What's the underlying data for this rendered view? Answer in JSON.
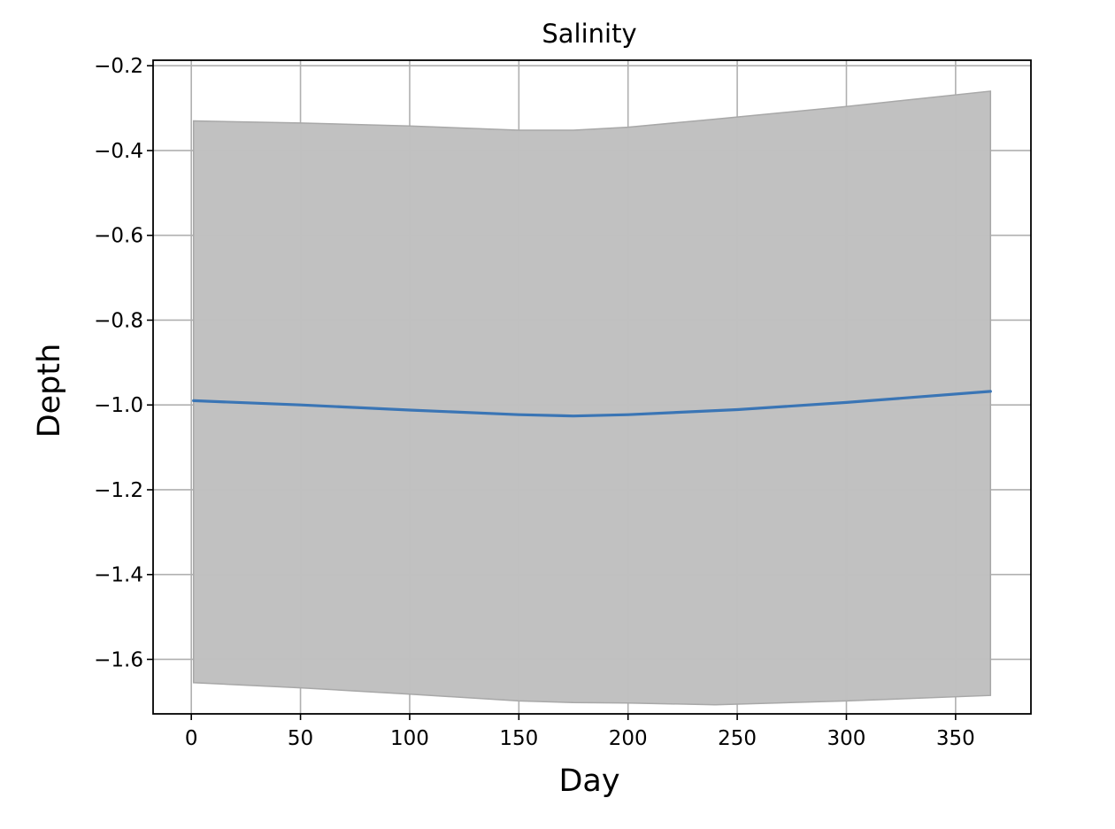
{
  "chart_data": {
    "type": "area",
    "title": "Salinity",
    "xlabel": "Day",
    "ylabel": "Depth",
    "xlim": [
      -17.5,
      384.5
    ],
    "ylim": [
      -1.7285,
      -0.187
    ],
    "x_ticks": [
      0,
      50,
      100,
      150,
      200,
      250,
      300,
      350
    ],
    "x_tick_labels": [
      "0",
      "50",
      "100",
      "150",
      "200",
      "250",
      "300",
      "350"
    ],
    "y_ticks": [
      -0.2,
      -0.4,
      -0.6,
      -0.8,
      -1.0,
      -1.2,
      -1.4,
      -1.6
    ],
    "y_tick_labels": [
      "−0.2",
      "−0.4",
      "−0.6",
      "−0.8",
      "−1.0",
      "−1.2",
      "−1.4",
      "−1.6"
    ],
    "grid": true,
    "colors": {
      "line": "#3a75b5",
      "band": "#c0c0c0"
    },
    "series": [
      {
        "x": [
          1,
          50,
          100,
          150,
          175,
          200,
          250,
          300,
          366
        ],
        "y": [
          -0.99,
          -1.0,
          -1.012,
          -1.023,
          -1.026,
          -1.023,
          -1.011,
          -0.994,
          -0.968
        ]
      }
    ],
    "band": {
      "x": [
        1,
        50,
        100,
        150,
        175,
        200,
        240,
        300,
        366
      ],
      "upper": [
        -0.33,
        -0.335,
        -0.342,
        -0.352,
        -0.352,
        -0.345,
        -0.326,
        -0.296,
        -0.26
      ],
      "lower": [
        -1.655,
        -1.667,
        -1.682,
        -1.698,
        -1.702,
        -1.703,
        -1.707,
        -1.698,
        -1.685
      ]
    }
  }
}
